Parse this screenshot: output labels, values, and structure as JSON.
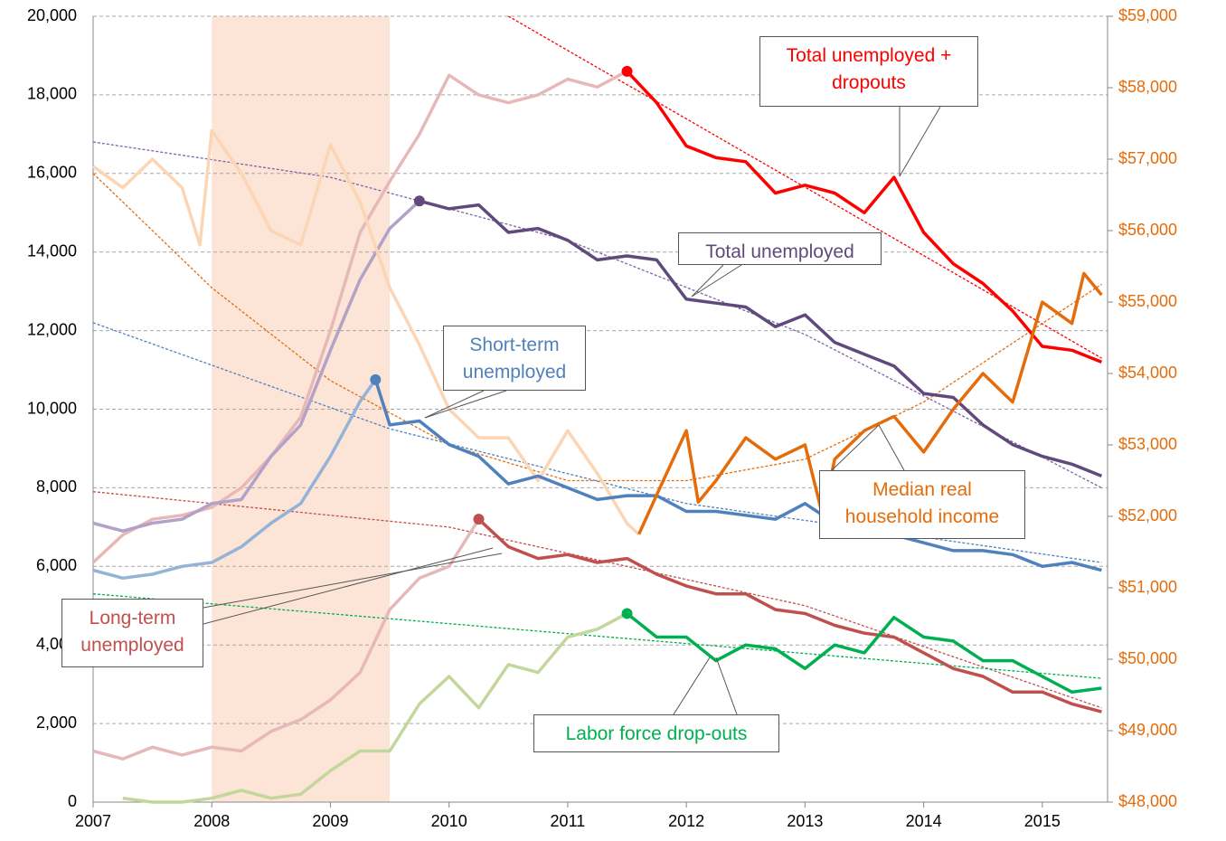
{
  "chart_data": {
    "type": "line",
    "xlim": [
      2007,
      2015.55
    ],
    "xticks": [
      2007,
      2008,
      2009,
      2010,
      2011,
      2012,
      2013,
      2014,
      2015
    ],
    "ylim": [
      0,
      20000
    ],
    "yticks": [
      0,
      {
        "value": 2000,
        "label": "2,000"
      },
      {
        "value": 4000,
        "label": "4,000"
      },
      {
        "value": 6000,
        "label": "6,000"
      },
      {
        "value": 8000,
        "label": "8,000"
      },
      {
        "value": 10000,
        "label": "10,000"
      },
      {
        "value": 12000,
        "label": "12,000"
      },
      {
        "value": 14000,
        "label": "14,000"
      },
      {
        "value": 16000,
        "label": "16,000"
      },
      {
        "value": 18000,
        "label": "18,000"
      },
      {
        "value": 20000,
        "label": "20,000"
      }
    ],
    "y2lim": [
      48000,
      59000
    ],
    "y2ticks": [
      {
        "value": 48000,
        "label": "$48,000"
      },
      {
        "value": 49000,
        "label": "$49,000"
      },
      {
        "value": 50000,
        "label": "$50,000"
      },
      {
        "value": 51000,
        "label": "$51,000"
      },
      {
        "value": 52000,
        "label": "$52,000"
      },
      {
        "value": 53000,
        "label": "$53,000"
      },
      {
        "value": 54000,
        "label": "$54,000"
      },
      {
        "value": 55000,
        "label": "$55,000"
      },
      {
        "value": 56000,
        "label": "$56,000"
      },
      {
        "value": 57000,
        "label": "$57,000"
      },
      {
        "value": 58000,
        "label": "$58,000"
      },
      {
        "value": 59000,
        "label": "$59,000"
      }
    ],
    "y2_color": "#e46c0a",
    "grid": true,
    "shaded_region": [
      2008,
      2009.5
    ],
    "shaded_color": "#fce4d6",
    "series": [
      {
        "color": "#e6b9b8",
        "style": "faded",
        "x": [
          2007,
          2007.25,
          2007.5,
          2007.75,
          2008,
          2008.25,
          2008.5,
          2008.75,
          2009,
          2009.25,
          2009.5,
          2009.75,
          2010,
          2010.25,
          2010.5,
          2010.75,
          2011,
          2011.25,
          2011.5
        ],
        "values": [
          6100,
          6800,
          7200,
          7300,
          7500,
          8000,
          8800,
          9800,
          12000,
          14500,
          15800,
          17000,
          18500,
          18000,
          17800,
          18000,
          18400,
          18200,
          18600
        ]
      },
      {
        "name": "Total unemployed + dropouts",
        "color": "#ff0000",
        "style": "solid",
        "start_marker": true,
        "x": [
          2011.5,
          2011.75,
          2012,
          2012.25,
          2012.5,
          2012.75,
          2013,
          2013.25,
          2013.5,
          2013.75,
          2014,
          2014.25,
          2014.5,
          2014.75,
          2015,
          2015.25,
          2015.5
        ],
        "values": [
          18600,
          17800,
          16700,
          16400,
          16300,
          15500,
          15700,
          15500,
          15000,
          15900,
          14500,
          13700,
          13200,
          12500,
          11600,
          11500,
          11200
        ]
      },
      {
        "color": "#b3a2c7",
        "style": "faded",
        "x": [
          2007,
          2007.25,
          2007.5,
          2007.75,
          2008,
          2008.25,
          2008.5,
          2008.75,
          2009,
          2009.25,
          2009.5,
          2009.75
        ],
        "values": [
          7100,
          6900,
          7100,
          7200,
          7600,
          7700,
          8800,
          9600,
          11500,
          13300,
          14600,
          15300
        ]
      },
      {
        "name": "Total unemployed",
        "color": "#604a7b",
        "style": "solid",
        "start_marker": true,
        "x": [
          2009.75,
          2010,
          2010.25,
          2010.5,
          2010.75,
          2011,
          2011.25,
          2011.5,
          2011.75,
          2012,
          2012.25,
          2012.5,
          2012.75,
          2013,
          2013.25,
          2013.5,
          2013.75,
          2014,
          2014.25,
          2014.5,
          2014.75,
          2015,
          2015.25,
          2015.5
        ],
        "values": [
          15300,
          15100,
          15200,
          14500,
          14600,
          14300,
          13800,
          13900,
          13800,
          12800,
          12700,
          12600,
          12100,
          12400,
          11700,
          11400,
          11100,
          10400,
          10300,
          9600,
          9100,
          8800,
          8600,
          8300
        ]
      },
      {
        "color": "#95b3d7",
        "style": "faded",
        "x": [
          2007,
          2007.25,
          2007.5,
          2007.75,
          2008,
          2008.25,
          2008.5,
          2008.75,
          2009,
          2009.25,
          2009.38
        ],
        "values": [
          5900,
          5700,
          5800,
          6000,
          6100,
          6500,
          7100,
          7600,
          8800,
          10200,
          10750
        ]
      },
      {
        "name": "Short-term unemployed",
        "color": "#4f81bd",
        "style": "solid",
        "start_marker": true,
        "x": [
          2009.38,
          2009.5,
          2009.75,
          2010,
          2010.25,
          2010.5,
          2010.75,
          2011,
          2011.25,
          2011.5,
          2011.75,
          2012,
          2012.25,
          2012.5,
          2012.75,
          2013,
          2013.25,
          2013.5,
          2013.75,
          2014,
          2014.25,
          2014.5,
          2014.75,
          2015,
          2015.25,
          2015.5
        ],
        "values": [
          10750,
          9600,
          9700,
          9100,
          8800,
          8100,
          8300,
          8000,
          7700,
          7800,
          7800,
          7400,
          7400,
          7300,
          7200,
          7600,
          7100,
          6800,
          6800,
          6600,
          6400,
          6400,
          6300,
          6000,
          6100,
          5900
        ]
      },
      {
        "color": "#e6b9b8",
        "style": "faded",
        "x": [
          2007,
          2007.25,
          2007.5,
          2007.75,
          2008,
          2008.25,
          2008.5,
          2008.75,
          2009,
          2009.25,
          2009.5,
          2009.75,
          2010,
          2010.25
        ],
        "values": [
          1300,
          1100,
          1400,
          1200,
          1400,
          1300,
          1800,
          2100,
          2600,
          3300,
          4900,
          5700,
          6000,
          7200
        ]
      },
      {
        "name": "Long-term unemployed",
        "color": "#c0504d",
        "style": "solid",
        "start_marker": true,
        "x": [
          2010.25,
          2010.5,
          2010.75,
          2011,
          2011.25,
          2011.5,
          2011.75,
          2012,
          2012.25,
          2012.5,
          2012.75,
          2013,
          2013.25,
          2013.5,
          2013.75,
          2014,
          2014.25,
          2014.5,
          2014.75,
          2015,
          2015.25,
          2015.5
        ],
        "values": [
          7200,
          6500,
          6200,
          6300,
          6100,
          6200,
          5800,
          5500,
          5300,
          5300,
          4900,
          4800,
          4500,
          4300,
          4200,
          3800,
          3400,
          3200,
          2800,
          2800,
          2500,
          2300
        ]
      },
      {
        "color": "#c3d69b",
        "style": "faded",
        "x": [
          2007.25,
          2007.5,
          2007.75,
          2008,
          2008.25,
          2008.5,
          2008.75,
          2009,
          2009.25,
          2009.5,
          2009.75,
          2010,
          2010.25,
          2010.5,
          2010.75,
          2011,
          2011.25,
          2011.5
        ],
        "values": [
          100,
          0,
          0,
          100,
          300,
          100,
          200,
          800,
          1300,
          1300,
          2500,
          3200,
          2400,
          3500,
          3300,
          4200,
          4400,
          4800
        ]
      },
      {
        "name": "Labor force drop-outs",
        "color": "#00b050",
        "style": "solid",
        "start_marker": true,
        "x": [
          2011.5,
          2011.75,
          2012,
          2012.25,
          2012.5,
          2012.75,
          2013,
          2013.25,
          2013.5,
          2013.75,
          2014,
          2014.25,
          2014.5,
          2014.75,
          2015,
          2015.25,
          2015.5
        ],
        "values": [
          4800,
          4200,
          4200,
          3600,
          4000,
          3900,
          3400,
          4000,
          3800,
          4700,
          4200,
          4100,
          3600,
          3600,
          3200,
          2800,
          2900
        ]
      },
      {
        "color": "#fcd5b5",
        "style": "faded",
        "axis": "y2",
        "x": [
          2007,
          2007.25,
          2007.5,
          2007.75,
          2007.9,
          2008,
          2008.25,
          2008.5,
          2008.75,
          2009,
          2009.25,
          2009.5,
          2009.75,
          2010,
          2010.25,
          2010.5,
          2010.75,
          2011,
          2011.25,
          2011.5,
          2011.6
        ],
        "values": [
          56900,
          56600,
          57000,
          56600,
          55800,
          57400,
          56800,
          56000,
          55800,
          57200,
          56400,
          55200,
          54400,
          53500,
          53100,
          53100,
          52500,
          53200,
          52600,
          51900,
          51750
        ]
      },
      {
        "name": "Median real household income",
        "color": "#e46c0a",
        "style": "solid",
        "axis": "y2",
        "x": [
          2011.6,
          2011.75,
          2012,
          2012.1,
          2012.25,
          2012.5,
          2012.75,
          2013,
          2013.15,
          2013.25,
          2013.5,
          2013.75,
          2014,
          2014.25,
          2014.5,
          2014.75,
          2015,
          2015.25,
          2015.35,
          2015.5
        ],
        "values": [
          51750,
          52300,
          53200,
          52200,
          52500,
          53100,
          52800,
          53000,
          52000,
          52800,
          53200,
          53400,
          52900,
          53500,
          54000,
          53600,
          55000,
          54700,
          55400,
          55100
        ]
      },
      {
        "color": "#ff0000",
        "style": "dashed",
        "x": [
          2010.5,
          2015.5
        ],
        "values": [
          20000,
          11300
        ]
      },
      {
        "color": "#7f64a6",
        "style": "dashed",
        "x": [
          2007,
          2009,
          2011,
          2013,
          2015.5
        ],
        "values": [
          16800,
          15900,
          14300,
          11900,
          8000
        ]
      },
      {
        "color": "#4f81bd",
        "style": "dashed",
        "x": [
          2007,
          2009.5,
          2012,
          2015.5
        ],
        "values": [
          12200,
          9500,
          7600,
          6100
        ]
      },
      {
        "color": "#c0504d",
        "style": "dashed",
        "x": [
          2007,
          2010,
          2013,
          2015.5
        ],
        "values": [
          7900,
          7000,
          5000,
          2400
        ]
      },
      {
        "color": "#00b050",
        "style": "dashed",
        "x": [
          2007,
          2015.5
        ],
        "values": [
          5300,
          3150
        ]
      },
      {
        "color": "#e46c0a",
        "style": "dashed",
        "axis": "y2",
        "x": [
          2007,
          2008,
          2009,
          2010,
          2011,
          2012,
          2013,
          2014,
          2015,
          2015.5
        ],
        "values": [
          56800,
          55200,
          53900,
          53000,
          52500,
          52500,
          52800,
          53600,
          54700,
          55250
        ]
      }
    ]
  }
}
